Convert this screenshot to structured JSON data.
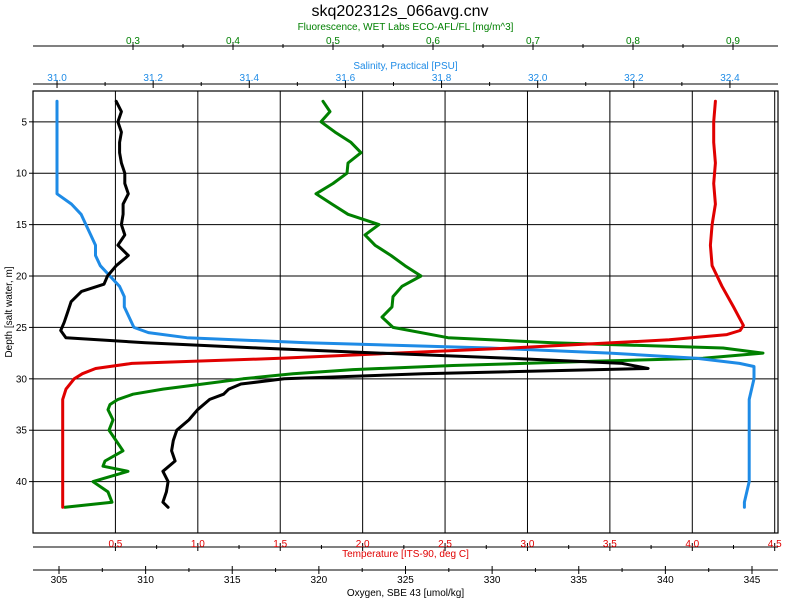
{
  "chart_data": {
    "type": "line",
    "title": "skq202312s_066avg.cnv",
    "grid": true,
    "y_axis": {
      "label": "Depth [salt water, m]",
      "range": [
        2,
        45
      ],
      "inverted": true,
      "ticks": [
        5,
        10,
        15,
        20,
        25,
        30,
        35,
        40
      ]
    },
    "x_axes": [
      {
        "id": "fluorescence",
        "label": "Fluorescence, WET Labs ECO-AFL/FL [mg/m^3]",
        "position": "top",
        "color": "#008000",
        "range": [
          0.2,
          0.945
        ],
        "ticks": [
          0.3,
          0.4,
          0.5,
          0.6,
          0.7,
          0.8,
          0.9
        ],
        "tick_labels": [
          "0.3",
          "0.4",
          "0.5",
          "0.6",
          "0.7",
          "0.8",
          "0.9"
        ]
      },
      {
        "id": "salinity",
        "label": "Salinity, Practical [PSU]",
        "position": "top",
        "color": "#1E8BE6",
        "range": [
          30.95,
          32.5
        ],
        "ticks": [
          31.0,
          31.2,
          31.4,
          31.6,
          31.8,
          32.0,
          32.2,
          32.4
        ],
        "tick_labels": [
          "31.0",
          "31.2",
          "31.4",
          "31.6",
          "31.8",
          "32.0",
          "32.2",
          "32.4"
        ]
      },
      {
        "id": "temperature",
        "label": "Temperature [ITS-90, deg C]",
        "position": "bottom",
        "color": "#E00000",
        "range": [
          0.0,
          4.52
        ],
        "ticks": [
          0.5,
          1.0,
          1.5,
          2.0,
          2.5,
          3.0,
          3.5,
          4.0,
          4.5
        ],
        "tick_labels": [
          "0.5",
          "1.0",
          "1.5",
          "2.0",
          "2.5",
          "3.0",
          "3.5",
          "4.0",
          "4.5"
        ]
      },
      {
        "id": "oxygen",
        "label": "Oxygen, SBE 43 [umol/kg]",
        "position": "bottom",
        "color": "#000000",
        "range": [
          303.5,
          346.5
        ],
        "ticks": [
          305,
          310,
          315,
          320,
          325,
          330,
          335,
          340,
          345
        ],
        "tick_labels": [
          "305",
          "310",
          "315",
          "320",
          "325",
          "330",
          "335",
          "340",
          "345"
        ]
      }
    ],
    "series": [
      {
        "name": "Fluorescence, WET Labs ECO-AFL/FL [mg/m^3]",
        "axis": "fluorescence",
        "color": "#008000",
        "depth": [
          3,
          4,
          5,
          6,
          7,
          8,
          9,
          10,
          11,
          12,
          13,
          14,
          15,
          16,
          17,
          18,
          19,
          20,
          21,
          22,
          23,
          24,
          25,
          26,
          26.5,
          27,
          27.5,
          28,
          28.3,
          28.7,
          29.1,
          29.5,
          30,
          30.5,
          31,
          31.5,
          32,
          32.5,
          33,
          34,
          35,
          36,
          37,
          38,
          38.5,
          39,
          40,
          41,
          42,
          42.5
        ],
        "values": [
          0.49,
          0.497,
          0.488,
          0.502,
          0.518,
          0.528,
          0.515,
          0.514,
          0.5,
          0.483,
          0.499,
          0.515,
          0.546,
          0.532,
          0.542,
          0.558,
          0.572,
          0.588,
          0.569,
          0.56,
          0.559,
          0.549,
          0.56,
          0.615,
          0.72,
          0.89,
          0.93,
          0.87,
          0.76,
          0.62,
          0.52,
          0.46,
          0.41,
          0.37,
          0.33,
          0.3,
          0.285,
          0.277,
          0.275,
          0.28,
          0.276,
          0.283,
          0.29,
          0.272,
          0.27,
          0.295,
          0.26,
          0.275,
          0.279,
          0.232
        ]
      },
      {
        "name": "Salinity, Practical [PSU]",
        "axis": "salinity",
        "color": "#1E8BE6",
        "depth": [
          3,
          4,
          6,
          8,
          10,
          12,
          13,
          14,
          15,
          16,
          17,
          18,
          19,
          20,
          21,
          22,
          23,
          24,
          25,
          25.5,
          26,
          26.5,
          27,
          27.5,
          28,
          28.5,
          28.8,
          29,
          30,
          32,
          34,
          36,
          38,
          40,
          42,
          42.5
        ],
        "values": [
          31.0,
          31.0,
          31.0,
          31.0,
          31.0,
          31.0,
          31.03,
          31.05,
          31.06,
          31.07,
          31.08,
          31.08,
          31.09,
          31.11,
          31.13,
          31.14,
          31.14,
          31.15,
          31.16,
          31.19,
          31.27,
          31.52,
          31.9,
          32.15,
          32.33,
          32.42,
          32.45,
          32.45,
          32.45,
          32.44,
          32.44,
          32.44,
          32.44,
          32.44,
          32.43,
          32.43
        ]
      },
      {
        "name": "Temperature [ITS-90, deg C]",
        "axis": "temperature",
        "color": "#E00000",
        "depth": [
          3,
          5,
          7,
          9,
          11,
          13,
          15,
          17,
          19,
          21,
          23,
          24.8,
          25.3,
          25.7,
          26.2,
          27,
          28,
          28.5,
          29,
          29.5,
          30,
          31,
          32,
          33,
          35,
          37,
          39,
          41,
          42,
          42.5
        ],
        "values": [
          4.14,
          4.13,
          4.13,
          4.14,
          4.13,
          4.14,
          4.12,
          4.11,
          4.12,
          4.18,
          4.25,
          4.31,
          4.29,
          4.21,
          3.86,
          2.9,
          1.5,
          0.6,
          0.38,
          0.3,
          0.25,
          0.2,
          0.18,
          0.18,
          0.18,
          0.18,
          0.18,
          0.18,
          0.18,
          0.18
        ]
      },
      {
        "name": "Oxygen, SBE 43 [umol/kg]",
        "axis": "oxygen",
        "color": "#000000",
        "depth": [
          3,
          4,
          5,
          6,
          7,
          8,
          9,
          10,
          11,
          12,
          13,
          14,
          15,
          16,
          17,
          18,
          19,
          20,
          20.8,
          21.5,
          22.5,
          23.5,
          24.5,
          25.3,
          26,
          26.5,
          27,
          27.5,
          28,
          28.5,
          29,
          29.5,
          30,
          30.5,
          31,
          31.5,
          32,
          33,
          34,
          35,
          36,
          37,
          38,
          39,
          40,
          41,
          42,
          42.5
        ],
        "values": [
          308.3,
          308.6,
          308.4,
          308.6,
          308.5,
          308.5,
          308.6,
          308.8,
          308.8,
          309.0,
          308.7,
          308.7,
          308.6,
          308.8,
          308.4,
          309.0,
          308.3,
          307.8,
          307.6,
          306.3,
          305.7,
          305.5,
          305.3,
          305.1,
          305.4,
          310.0,
          316.5,
          323.5,
          331.0,
          337.5,
          339.0,
          326.0,
          318.0,
          315.5,
          314.8,
          314.5,
          313.7,
          313.0,
          312.5,
          311.8,
          311.6,
          311.5,
          311.7,
          311.0,
          311.3,
          311.2,
          311.0,
          311.3
        ]
      }
    ]
  }
}
